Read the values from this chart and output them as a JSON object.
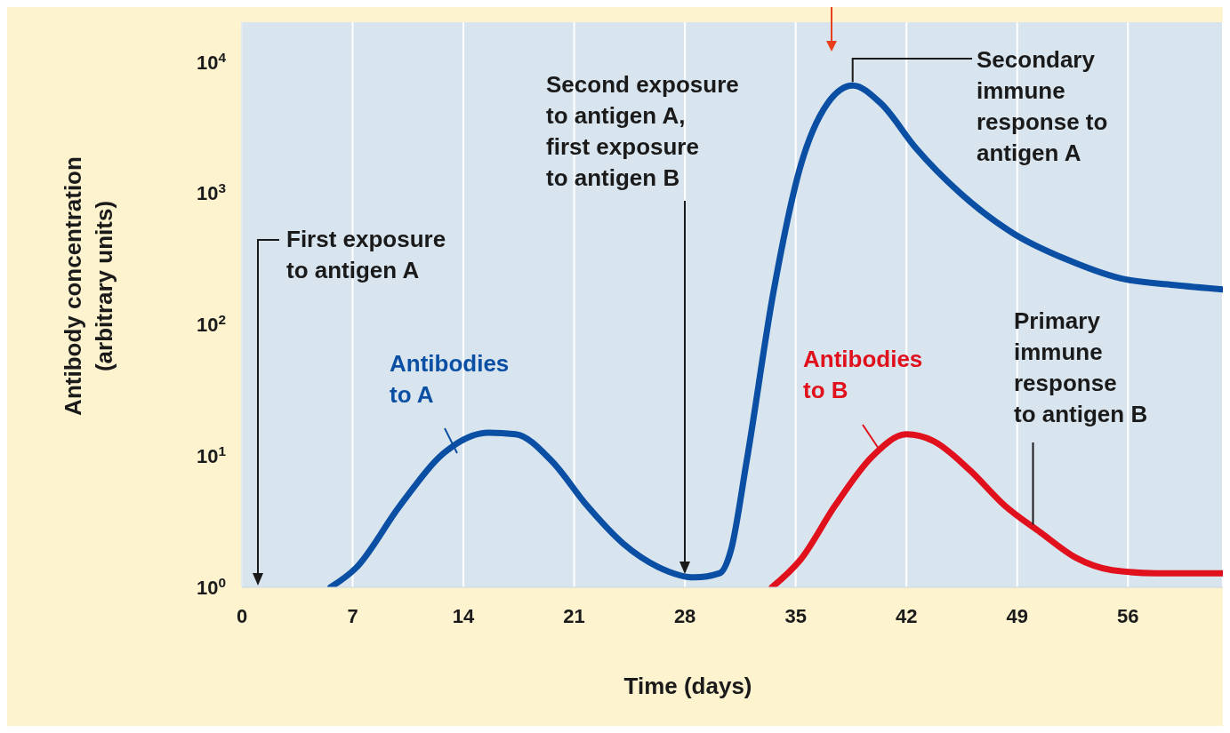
{
  "chart_data": {
    "type": "line",
    "xlabel": "Time (days)",
    "ylabel": "Antibody concentration\n(arbitrary units)",
    "xlim": [
      0,
      62
    ],
    "xticks": [
      0,
      7,
      14,
      21,
      28,
      35,
      42,
      49,
      56
    ],
    "ylim": [
      1,
      20000
    ],
    "yticks": [
      {
        "value": 1,
        "label": "10$^{0}$"
      },
      {
        "value": 10,
        "label": "10$^{1}$"
      },
      {
        "value": 100,
        "label": "10$^{2}$"
      },
      {
        "value": 1000,
        "label": "10$^{3}$"
      },
      {
        "value": 10000,
        "label": "10$^{4}$"
      }
    ],
    "log": "y",
    "grid": "x",
    "series": [
      {
        "name": "Antibodies\nto A",
        "color": "#0a4fa3",
        "x": [
          5.6,
          7.2,
          10,
          12.8,
          15.6,
          17.3,
          19.6,
          21.8,
          24.1,
          26.3,
          28.6,
          30.2,
          30.9,
          31.9,
          33.6,
          35.3,
          37,
          38.6,
          40.4,
          42.6,
          45.4,
          48.8,
          52.2,
          55.5,
          58.9,
          62
        ],
        "values": [
          1,
          1.4,
          4.2,
          10.6,
          15,
          14.6,
          9.1,
          4.2,
          2.15,
          1.43,
          1.19,
          1.28,
          1.9,
          9.1,
          178,
          1600,
          4800,
          6600,
          4800,
          2200,
          1000,
          490,
          310,
          225,
          200,
          185
        ]
      },
      {
        "name": "Antibodies\nto B",
        "color": "#e0101c",
        "x": [
          33.5,
          35.3,
          37.5,
          39.8,
          42,
          43.7,
          46,
          48.2,
          50.5,
          52.7,
          55,
          57.8,
          62
        ],
        "values": [
          1,
          1.62,
          4.2,
          9.8,
          14.6,
          13,
          7.8,
          4.2,
          2.6,
          1.68,
          1.35,
          1.28,
          1.28
        ]
      }
    ],
    "annotations": [
      "First exposure\nto antigen A",
      "Second exposure\nto antigen A,\nfirst exposure\nto antigen B",
      {
        "text": "Secondary\nimmune\nresponse to\nantigen A",
        "x": 38.6,
        "y": 6600
      },
      {
        "text": "Primary\nimmune\nresponse\nto antigen B",
        "x": 50,
        "y": 3
      }
    ]
  }
}
